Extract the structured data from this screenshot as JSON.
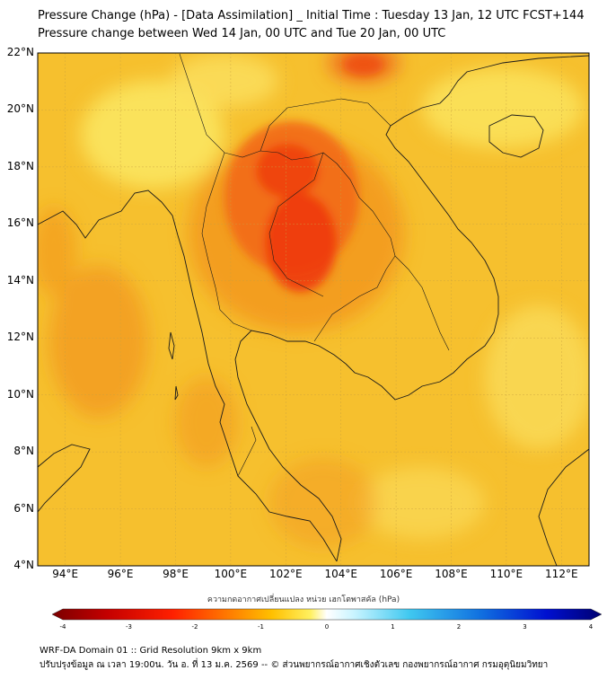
{
  "header": {
    "title": "Pressure Change (hPa) - [Data Assimilation] _ Initial Time : Tuesday 13 Jan, 12 UTC FCST+144",
    "subtitle": "Pressure change between Wed 14 Jan, 00 UTC and Tue 20 Jan, 00 UTC"
  },
  "map": {
    "lat_labels": [
      "22°N",
      "20°N",
      "18°N",
      "16°N",
      "14°N",
      "12°N",
      "10°N",
      "8°N",
      "6°N",
      "4°N"
    ],
    "lon_labels": [
      "94°E",
      "96°E",
      "98°E",
      "100°E",
      "102°E",
      "104°E",
      "106°E",
      "108°E",
      "110°E",
      "112°E"
    ],
    "lat_range": [
      4,
      22
    ],
    "lon_range": [
      93,
      113
    ],
    "gridlines": true,
    "colors": {
      "base": "#f6c02e",
      "light": "#fbe660",
      "orange": "#f39a20",
      "red": "#ee3a10",
      "outline": "#1a1a1a"
    }
  },
  "colorbar": {
    "caption": "ความกดอากาศเปลี่ยนแปลง หน่วย เฮกโตพาสคัล (hPa)",
    "ticks": [
      "-4",
      "-3",
      "-2",
      "-1",
      "0",
      "1",
      "2",
      "3",
      "4"
    ],
    "range": [
      -4,
      4
    ]
  },
  "footer": {
    "line1": "WRF-DA Domain 01 :: Grid Resolution 9km x 9km",
    "line2": "ปรับปรุงข้อมูล ณ เวลา 19:00น. วัน อ. ที่ 13 ม.ค. 2569 -- © ส่วนพยากรณ์อากาศเชิงตัวเลข กองพยากรณ์อากาศ กรมอุตุนิยมวิทยา"
  }
}
